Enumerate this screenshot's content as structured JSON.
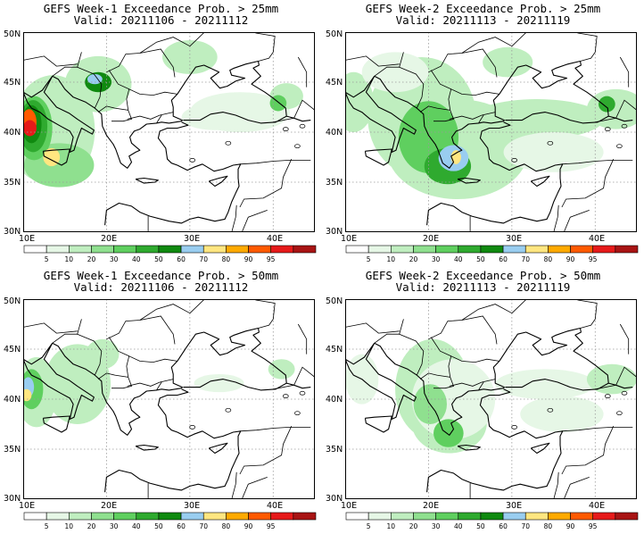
{
  "panels": [
    {
      "title": "GEFS Week-1 Exceedance Prob. > 25mm",
      "valid": "Valid: 20211106 - 20211112",
      "product": "week1_25"
    },
    {
      "title": "GEFS Week-2 Exceedance Prob. > 25mm",
      "valid": "Valid: 20211113 - 20211119",
      "product": "week2_25"
    },
    {
      "title": "GEFS Week-1 Exceedance Prob. > 50mm",
      "valid": "Valid: 20211106 - 20211112",
      "product": "week1_50"
    },
    {
      "title": "GEFS Week-2 Exceedance Prob. > 50mm",
      "valid": "Valid: 20211113 - 20211119",
      "product": "week2_50"
    }
  ],
  "map": {
    "lat_labels": [
      "50N",
      "45N",
      "40N",
      "35N",
      "30N"
    ],
    "lat_values": [
      50,
      45,
      40,
      35,
      30
    ],
    "lon_labels": [
      "10E",
      "20E",
      "30E",
      "40E"
    ],
    "lon_values": [
      10,
      20,
      30,
      40
    ],
    "extent": {
      "lon": [
        10,
        45
      ],
      "lat": [
        30,
        50
      ]
    }
  },
  "colorbar": {
    "ticks": [
      "5",
      "10",
      "20",
      "30",
      "40",
      "50",
      "60",
      "70",
      "80",
      "90",
      "95"
    ],
    "colors": [
      "#ffffff",
      "#e6f7e6",
      "#bfeebf",
      "#8fe08f",
      "#5fcf5f",
      "#2faa2f",
      "#108a10",
      "#99cdf0",
      "#ffe680",
      "#ffaa00",
      "#ff5a00",
      "#e61a1a",
      "#a81414"
    ]
  }
}
